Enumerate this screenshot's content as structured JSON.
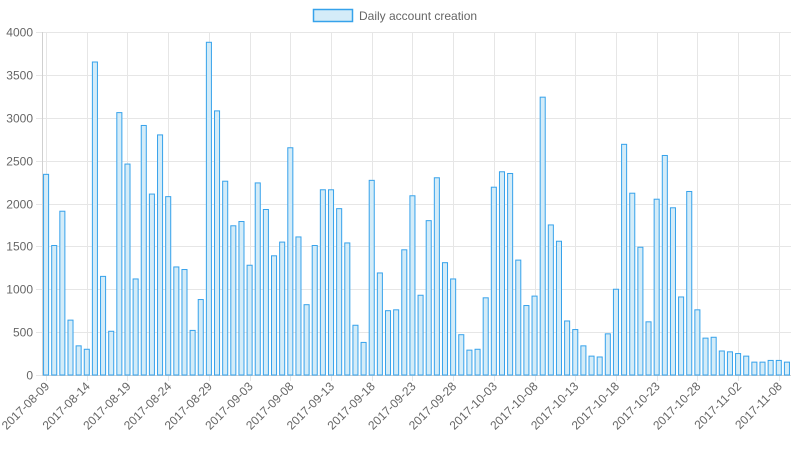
{
  "chart_data": {
    "type": "bar",
    "legend": {
      "position": "top-center",
      "label": "Daily account creation"
    },
    "colors": {
      "bar_fill": "#d4ecf8",
      "bar_stroke": "#36a2eb",
      "grid": "#e6e6e6",
      "axis_text": "#666666"
    },
    "grid": true,
    "ylim": [
      0,
      4000
    ],
    "yticks": [
      0,
      500,
      1000,
      1500,
      2000,
      2500,
      3000,
      3500,
      4000
    ],
    "xtick_labels": [
      "2017-08-09",
      "2017-08-14",
      "2017-08-19",
      "2017-08-24",
      "2017-08-29",
      "2017-09-03",
      "2017-09-08",
      "2017-09-13",
      "2017-09-18",
      "2017-09-23",
      "2017-09-28",
      "2017-10-03",
      "2017-10-08",
      "2017-10-13",
      "2017-10-18",
      "2017-10-23",
      "2017-10-28",
      "2017-11-02",
      "2017-11-08"
    ],
    "series": [
      {
        "name": "Daily account creation",
        "values": [
          2340,
          1510,
          1910,
          640,
          340,
          300,
          3650,
          1150,
          510,
          3060,
          2460,
          1120,
          2910,
          2110,
          2800,
          2080,
          1260,
          1230,
          520,
          880,
          3880,
          3080,
          2260,
          1740,
          1790,
          1280,
          2240,
          1930,
          1390,
          1550,
          2650,
          1610,
          820,
          1510,
          2160,
          2160,
          1940,
          1540,
          580,
          380,
          2270,
          1190,
          750,
          760,
          1460,
          2090,
          930,
          1800,
          2300,
          1310,
          1120,
          470,
          290,
          300,
          900,
          2190,
          2370,
          2350,
          1340,
          810,
          920,
          3240,
          1750,
          1560,
          630,
          530,
          340,
          220,
          210,
          480,
          1000,
          2690,
          2120,
          1490,
          620,
          2050,
          2560,
          1950,
          910,
          2140,
          760,
          430,
          440,
          280,
          270,
          250,
          220,
          150,
          150,
          170,
          170,
          150
        ]
      }
    ]
  }
}
